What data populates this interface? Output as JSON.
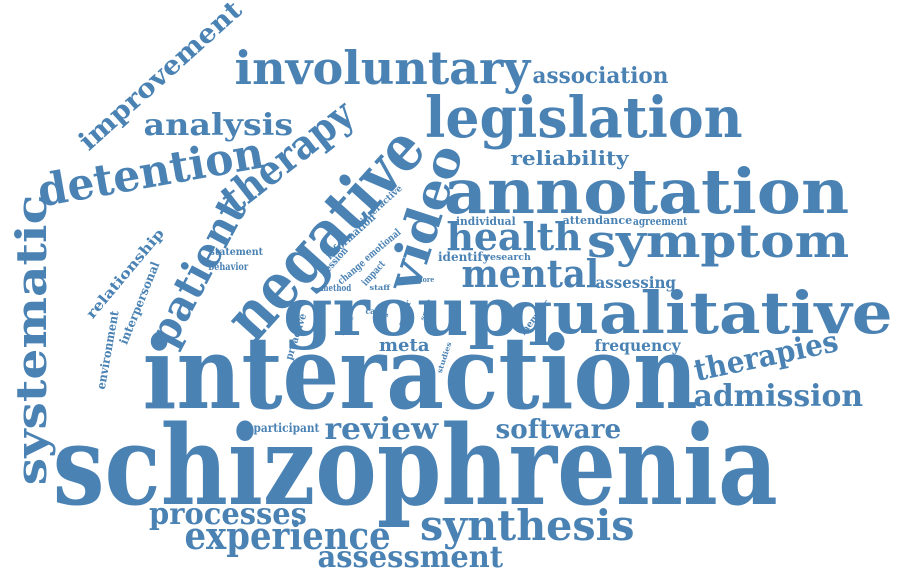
{
  "color": "#4a82b4",
  "words": [
    "schizophrenia",
    "interaction",
    "group",
    "qualitative",
    "annotation",
    "negative",
    "legislation",
    "involuntary",
    "systematic",
    "detention",
    "symptom",
    "video",
    "mental",
    "health",
    "therapy",
    "patient",
    "synthesis",
    "experience",
    "processes",
    "assessment",
    "review",
    "software",
    "admission",
    "therapies",
    "analysis",
    "improvement",
    "association",
    "reliability",
    "meta",
    "frequency",
    "assessing",
    "relationship",
    "interpersonal",
    "environment",
    "participant",
    "statement",
    "behavior",
    "individual",
    "attendance",
    "agreement",
    "information",
    "interactive",
    "session",
    "emotional",
    "change",
    "impact",
    "method",
    "identify",
    "research",
    "more",
    "proactive",
    "theme",
    "care",
    "staff",
    "rater",
    "studies",
    "member",
    "scale",
    "pre"
  ]
}
